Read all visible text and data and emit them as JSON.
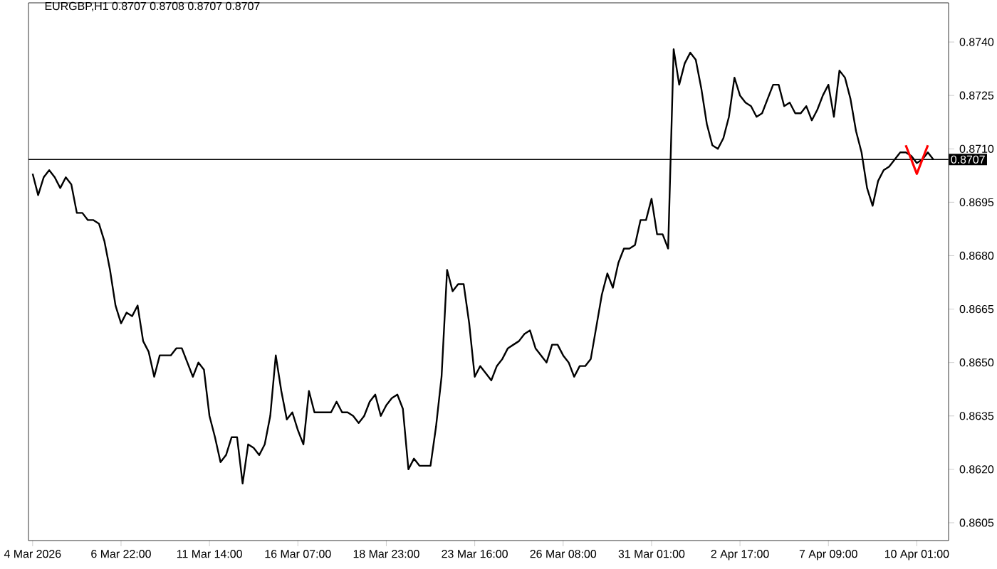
{
  "chart_data": {
    "type": "line",
    "title": "EURGBP,H1  0.8707 0.8708 0.8707 0.8707",
    "categories": [
      "4 Mar 2026",
      null,
      null,
      null,
      null,
      null,
      null,
      null,
      null,
      null,
      null,
      null,
      null,
      null,
      null,
      null,
      "6 Mar 22:00",
      null,
      null,
      null,
      null,
      null,
      null,
      null,
      null,
      null,
      null,
      null,
      null,
      null,
      null,
      null,
      "11 Mar 14:00",
      null,
      null,
      null,
      null,
      null,
      null,
      null,
      null,
      null,
      null,
      null,
      null,
      null,
      null,
      null,
      "16 Mar 07:00",
      null,
      null,
      null,
      null,
      null,
      null,
      null,
      null,
      null,
      null,
      null,
      null,
      null,
      null,
      null,
      "18 Mar 23:00",
      null,
      null,
      null,
      null,
      null,
      null,
      null,
      null,
      null,
      null,
      null,
      null,
      null,
      null,
      null,
      "23 Mar 16:00",
      null,
      null,
      null,
      null,
      null,
      null,
      null,
      null,
      null,
      null,
      null,
      null,
      null,
      null,
      null,
      "26 Mar 08:00",
      null,
      null,
      null,
      null,
      null,
      null,
      null,
      null,
      null,
      null,
      null,
      null,
      null,
      null,
      null,
      "31 Mar 01:00",
      null,
      null,
      null,
      null,
      null,
      null,
      null,
      null,
      null,
      null,
      null,
      null,
      null,
      null,
      null,
      "2 Apr 17:00",
      null,
      null,
      null,
      null,
      null,
      null,
      null,
      null,
      null,
      null,
      null,
      null,
      null,
      null,
      null,
      "7 Apr 09:00",
      null,
      null,
      null,
      null,
      null,
      null,
      null,
      null,
      null,
      null,
      null,
      null,
      null,
      null,
      null,
      "10 Apr 01:00",
      null,
      null,
      null
    ],
    "ylim": [
      0.86,
      0.8751
    ],
    "yticks": [
      {
        "value": 0.8605,
        "label": "0.8605"
      },
      {
        "value": 0.862,
        "label": "0.8620"
      },
      {
        "value": 0.8635,
        "label": "0.8635"
      },
      {
        "value": 0.865,
        "label": "0.8650"
      },
      {
        "value": 0.8665,
        "label": "0.8665"
      },
      {
        "value": 0.868,
        "label": "0.8680"
      },
      {
        "value": 0.8695,
        "label": "0.8695"
      },
      {
        "value": 0.871,
        "label": "0.8710"
      },
      {
        "value": 0.8725,
        "label": "0.8725"
      },
      {
        "value": 0.874,
        "label": "0.8740"
      }
    ],
    "grid": false,
    "marker": "none",
    "line_style": "solid",
    "ref_lines": [
      {
        "axis": "y",
        "value": 0.8707,
        "label": "0.8707",
        "color": "#000000"
      }
    ],
    "series": [
      {
        "color": "#000000",
        "values": [
          0.8703,
          0.8697,
          0.8702,
          0.8704,
          0.8702,
          0.8699,
          0.8702,
          0.87,
          0.8692,
          0.8692,
          0.869,
          0.869,
          0.8689,
          0.8684,
          0.8676,
          0.8666,
          0.8661,
          0.8664,
          0.8663,
          0.8666,
          0.8656,
          0.8653,
          0.8646,
          0.8652,
          0.8652,
          0.8652,
          0.8654,
          0.8654,
          0.865,
          0.8646,
          0.865,
          0.8648,
          0.8635,
          0.8629,
          0.8622,
          0.8624,
          0.8629,
          0.8629,
          0.8616,
          0.8627,
          0.8626,
          0.8624,
          0.8627,
          0.8635,
          0.8652,
          0.8642,
          0.8634,
          0.8636,
          0.8631,
          0.8627,
          0.8642,
          0.8636,
          0.8636,
          0.8636,
          0.8636,
          0.8639,
          0.8636,
          0.8636,
          0.8635,
          0.8633,
          0.8635,
          0.8639,
          0.8641,
          0.8635,
          0.8638,
          0.864,
          0.8641,
          0.8637,
          0.862,
          0.8623,
          0.8621,
          0.8621,
          0.8621,
          0.8632,
          0.8646,
          0.8676,
          0.867,
          0.8672,
          0.8672,
          0.8661,
          0.8646,
          0.8649,
          0.8647,
          0.8645,
          0.8649,
          0.8651,
          0.8654,
          0.8655,
          0.8656,
          0.8658,
          0.8659,
          0.8654,
          0.8652,
          0.865,
          0.8655,
          0.8655,
          0.8652,
          0.865,
          0.8646,
          0.8649,
          0.8649,
          0.8651,
          0.866,
          0.8669,
          0.8675,
          0.8671,
          0.8678,
          0.8682,
          0.8682,
          0.8683,
          0.869,
          0.869,
          0.8696,
          0.8686,
          0.8686,
          0.8682,
          0.8738,
          0.8728,
          0.8734,
          0.8737,
          0.8735,
          0.8727,
          0.8717,
          0.8711,
          0.871,
          0.8713,
          0.8719,
          0.873,
          0.8725,
          0.8723,
          0.8722,
          0.8719,
          0.872,
          0.8724,
          0.8728,
          0.8728,
          0.8722,
          0.8723,
          0.872,
          0.872,
          0.8722,
          0.8718,
          0.8721,
          0.8725,
          0.8728,
          0.8719,
          0.8732,
          0.873,
          0.8724,
          0.8715,
          0.8709,
          0.8699,
          0.8694,
          0.8701,
          0.8704,
          0.8705,
          0.8707,
          0.8709,
          0.8709,
          0.8708,
          0.8706,
          0.8707,
          0.8709,
          0.8707
        ]
      },
      {
        "color": "#ff0000",
        "values": [
          null,
          null,
          null,
          null,
          null,
          null,
          null,
          null,
          null,
          null,
          null,
          null,
          null,
          null,
          null,
          null,
          null,
          null,
          null,
          null,
          null,
          null,
          null,
          null,
          null,
          null,
          null,
          null,
          null,
          null,
          null,
          null,
          null,
          null,
          null,
          null,
          null,
          null,
          null,
          null,
          null,
          null,
          null,
          null,
          null,
          null,
          null,
          null,
          null,
          null,
          null,
          null,
          null,
          null,
          null,
          null,
          null,
          null,
          null,
          null,
          null,
          null,
          null,
          null,
          null,
          null,
          null,
          null,
          null,
          null,
          null,
          null,
          null,
          null,
          null,
          null,
          null,
          null,
          null,
          null,
          null,
          null,
          null,
          null,
          null,
          null,
          null,
          null,
          null,
          null,
          null,
          null,
          null,
          null,
          null,
          null,
          null,
          null,
          null,
          null,
          null,
          null,
          null,
          null,
          null,
          null,
          null,
          null,
          null,
          null,
          null,
          null,
          null,
          null,
          null,
          null,
          null,
          null,
          null,
          null,
          null,
          null,
          null,
          null,
          null,
          null,
          null,
          null,
          null,
          null,
          null,
          null,
          null,
          null,
          null,
          null,
          null,
          null,
          null,
          null,
          null,
          null,
          null,
          null,
          null,
          null,
          null,
          null,
          null,
          null,
          null,
          null,
          null,
          null,
          null,
          null,
          null,
          null,
          0.8711,
          0.8707,
          0.8703,
          0.8707,
          0.8711,
          null
        ]
      }
    ]
  }
}
